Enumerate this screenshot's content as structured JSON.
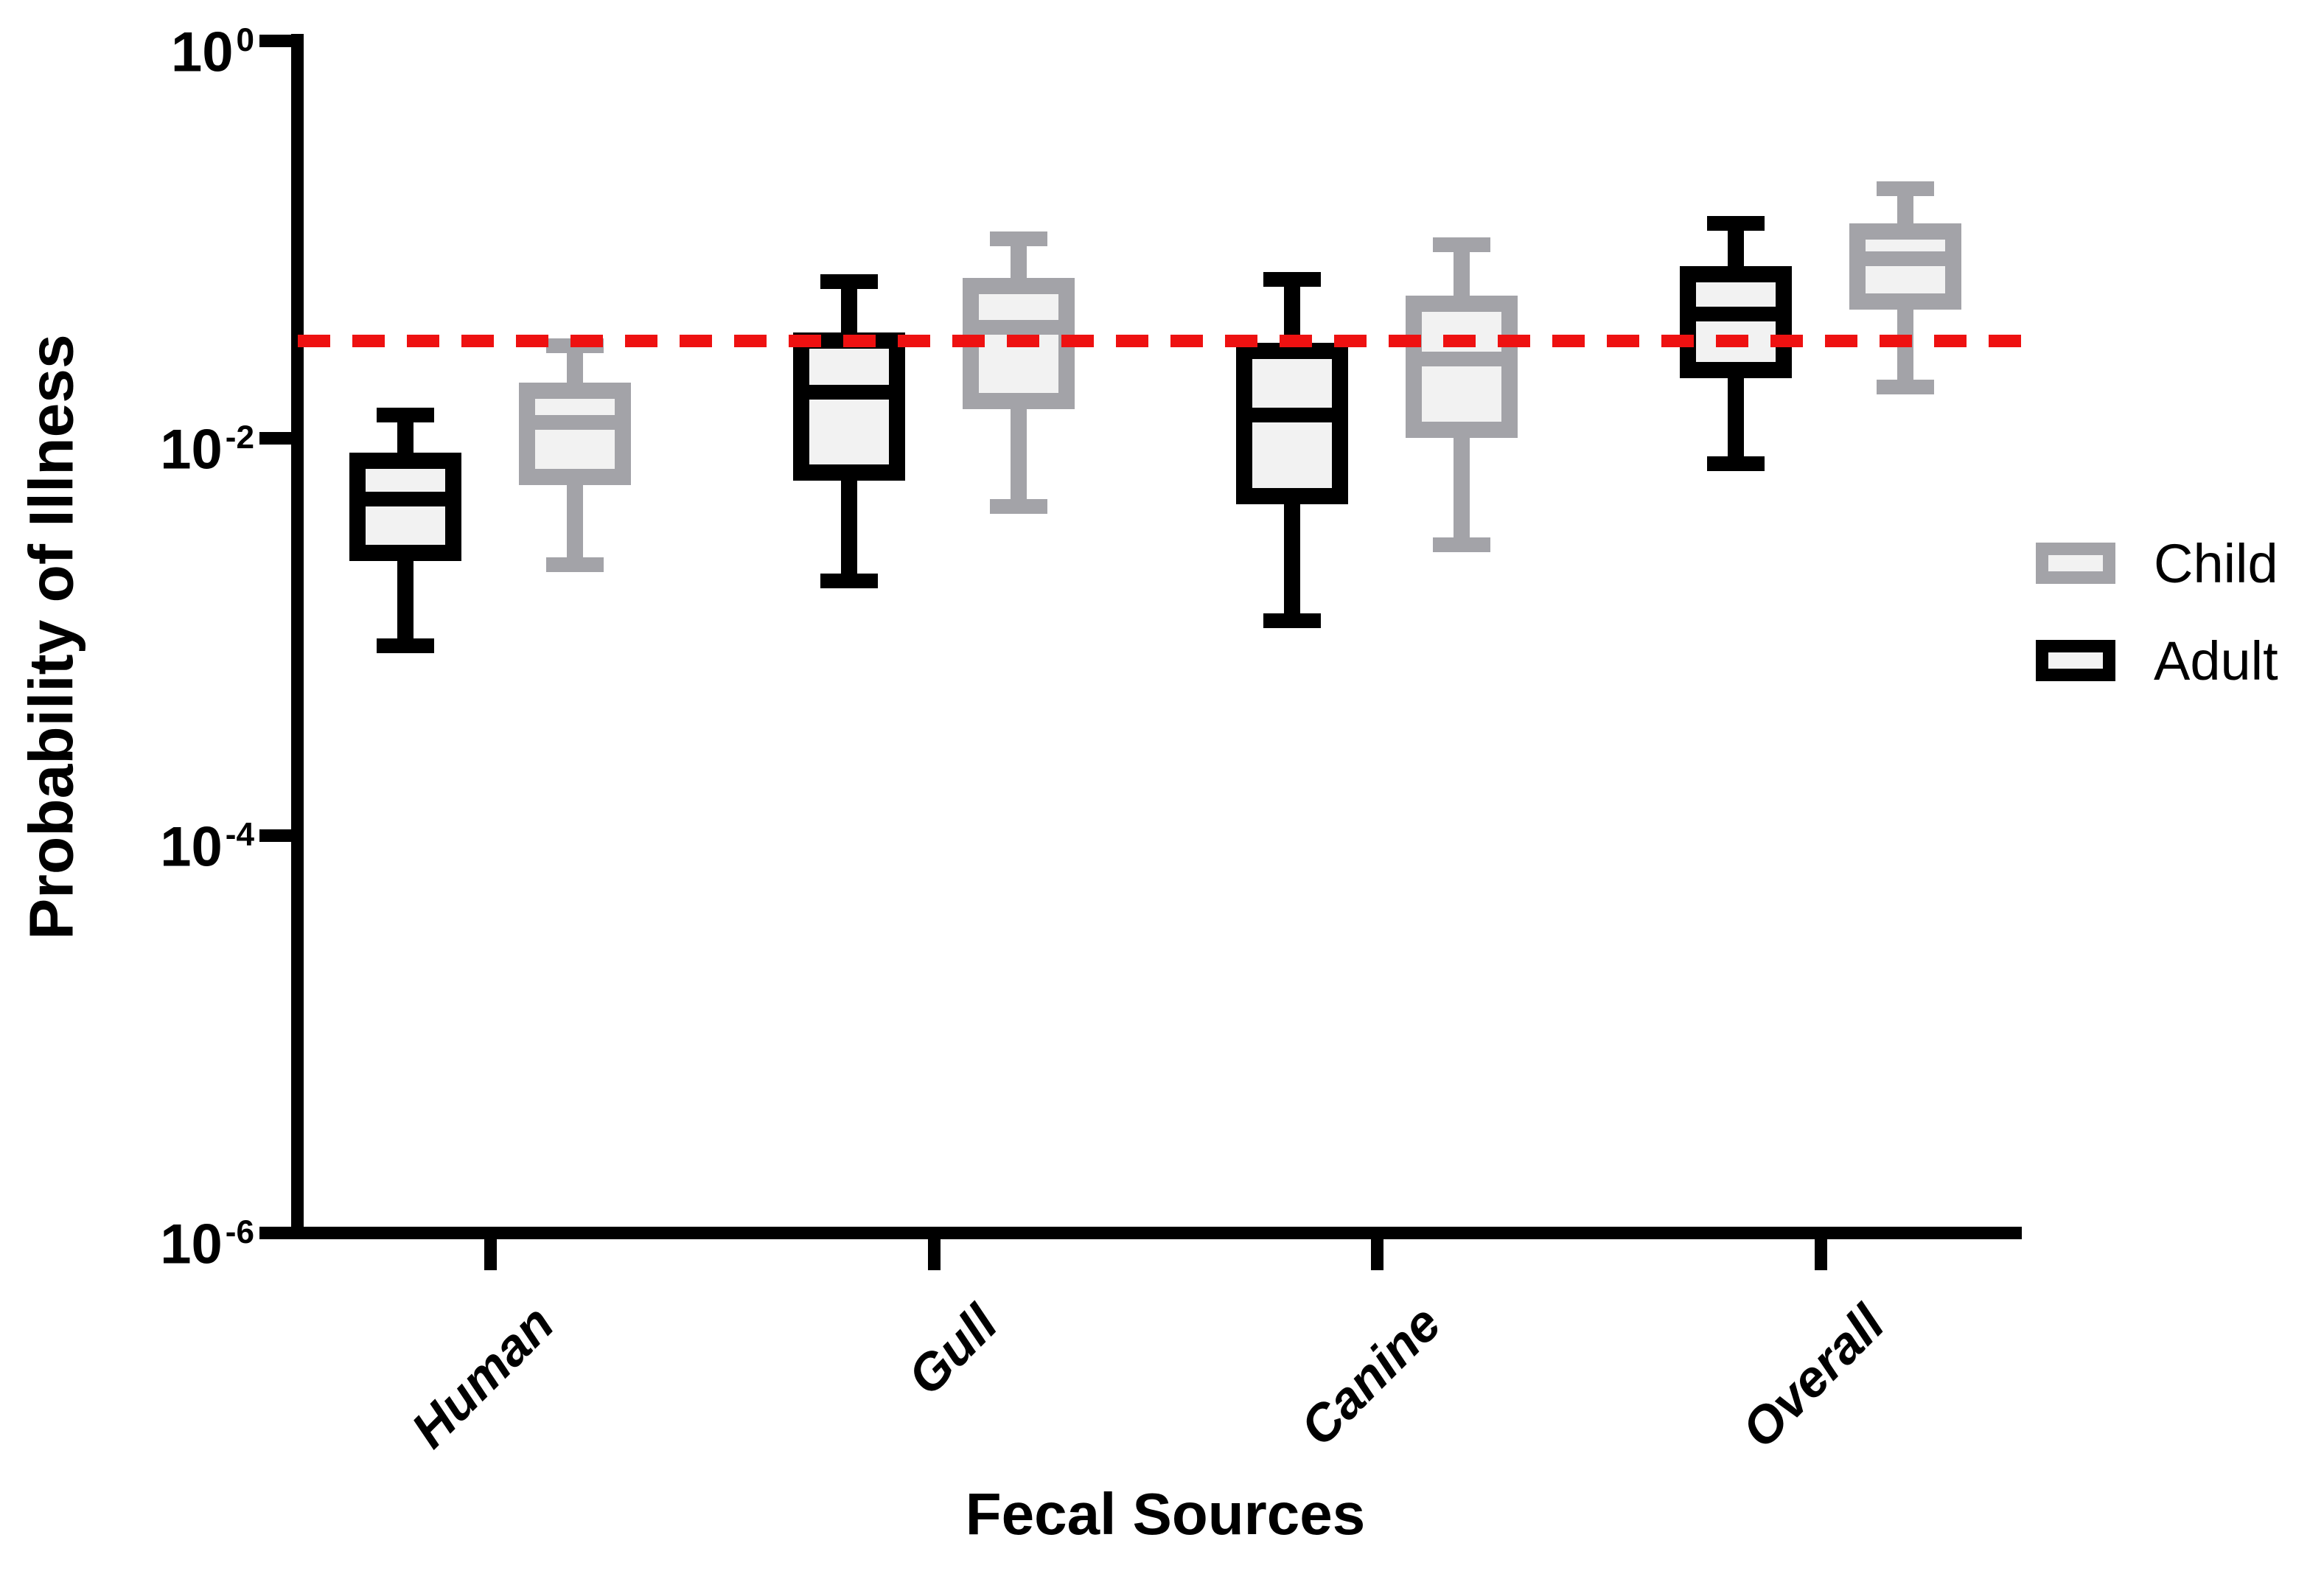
{
  "y_axis": {
    "title": "Probability of Illness",
    "tick_base": "10",
    "tick_exponents": [
      "0",
      "-2",
      "-4",
      "-6"
    ]
  },
  "x_axis": {
    "title": "Fecal Sources",
    "categories": [
      "Human",
      "Gull",
      "Canine",
      "Overall"
    ]
  },
  "legend": {
    "items": [
      {
        "label": "Child",
        "key": "child"
      },
      {
        "label": "Adult",
        "key": "adult"
      }
    ]
  },
  "colors": {
    "adult": "#000000",
    "child": "#a3a3a8",
    "box_fill": "#f2f2f2",
    "threshold": "#ee1111"
  },
  "chart_data": {
    "type": "box",
    "title": "",
    "xlabel": "Fecal Sources",
    "ylabel": "Probability of Illness",
    "yscale": "log",
    "ylim": [
      1e-06,
      1
    ],
    "grid": false,
    "legend_position": "right",
    "categories": [
      "Human",
      "Gull",
      "Canine",
      "Overall"
    ],
    "series": [
      {
        "name": "Adult",
        "color_key": "adult",
        "boxes": [
          {
            "category": "Human",
            "whisker_low": 0.0009,
            "q1": 0.0024,
            "median": 0.0049,
            "q3": 0.0084,
            "whisker_high": 0.013
          },
          {
            "category": "Gull",
            "whisker_low": 0.0019,
            "q1": 0.0061,
            "median": 0.017,
            "q3": 0.034,
            "whisker_high": 0.061
          },
          {
            "category": "Canine",
            "whisker_low": 0.0012,
            "q1": 0.0046,
            "median": 0.013,
            "q3": 0.03,
            "whisker_high": 0.063
          },
          {
            "category": "Overall",
            "whisker_low": 0.0074,
            "q1": 0.02,
            "median": 0.042,
            "q3": 0.073,
            "whisker_high": 0.12
          }
        ]
      },
      {
        "name": "Child",
        "color_key": "child",
        "boxes": [
          {
            "category": "Human",
            "whisker_low": 0.0023,
            "q1": 0.0058,
            "median": 0.012,
            "q3": 0.019,
            "whisker_high": 0.029
          },
          {
            "category": "Gull",
            "whisker_low": 0.0045,
            "q1": 0.014,
            "median": 0.036,
            "q3": 0.064,
            "whisker_high": 0.1
          },
          {
            "category": "Canine",
            "whisker_low": 0.0029,
            "q1": 0.01,
            "median": 0.025,
            "q3": 0.052,
            "whisker_high": 0.094
          },
          {
            "category": "Overall",
            "whisker_low": 0.018,
            "q1": 0.044,
            "median": 0.08,
            "q3": 0.12,
            "whisker_high": 0.18
          }
        ]
      }
    ],
    "reference_line": {
      "value": 0.031,
      "style": "dashed",
      "color_key": "threshold"
    }
  }
}
